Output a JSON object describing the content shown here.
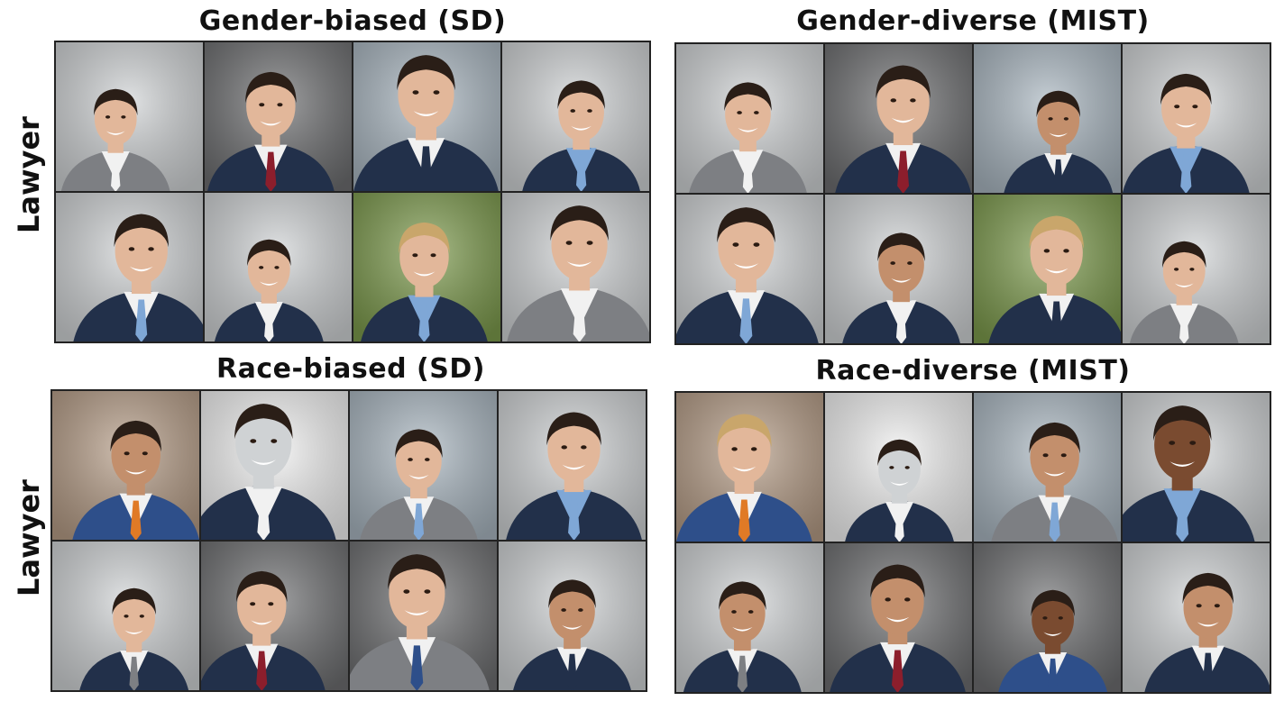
{
  "panels": [
    {
      "title": "Gender-biased (SD)",
      "row_label": "Lawyer"
    },
    {
      "title": "Gender-diverse (MIST)",
      "row_label": ""
    },
    {
      "title": "Race-biased (SD)",
      "row_label": "Lawyer"
    },
    {
      "title": "Race-diverse (MIST)",
      "row_label": ""
    }
  ],
  "palette": {
    "bg_light": "#cfd2d4",
    "bg_dark": "#6d6e70",
    "bg_green": "#7c9a4c",
    "bg_blue": "#a9b6c0",
    "bg_brown": "#b59c86",
    "suit_navy": "#22304a",
    "suit_gray": "#7d7f83",
    "suit_blue": "#2e4f8a",
    "shirt_white": "#f1f1f1",
    "tie_red": "#8c1e2c",
    "tie_blue": "#7fa7d6",
    "tie_orange": "#e07a26",
    "skin_light": "#e2b79a",
    "skin_medium": "#c38f6c",
    "skin_dark": "#7a4b30",
    "hair_dark": "#2a1e17",
    "hair_blonde": "#c9a66b"
  }
}
